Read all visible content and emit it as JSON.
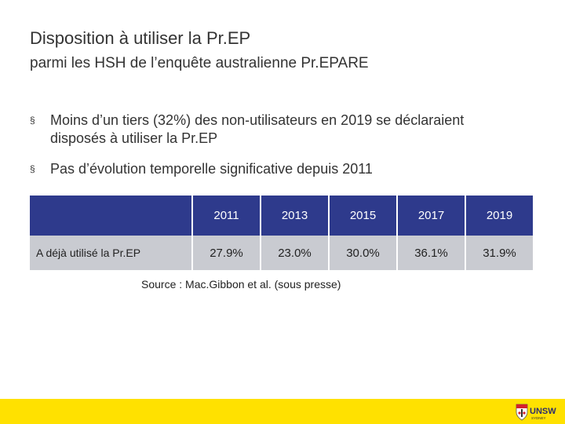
{
  "slide": {
    "title": "Disposition à utiliser la Pr.EP",
    "subtitle": "parmi les HSH de l’enquête australienne Pr.EPARE",
    "bullets": [
      "Moins d’un tiers (32%) des non-utilisateurs en 2019 se déclaraient disposés à utiliser la Pr.EP",
      "Pas d’évolution temporelle significative depuis 2011"
    ],
    "bullet_marker": "§"
  },
  "table": {
    "header_corner": "",
    "years": [
      "2011",
      "2013",
      "2015",
      "2017",
      "2019"
    ],
    "row_label": "A déjà utilisé la Pr.EP",
    "values": [
      "27.9%",
      "23.0%",
      "30.0%",
      "36.1%",
      "31.9%"
    ]
  },
  "source": "Source : Mac.Gibbon et al. (sous presse)",
  "logo": {
    "icon": "unsw-crest-icon",
    "text": "UNSW",
    "subtext": "SYDNEY"
  },
  "colors": {
    "header_fill": "#2e3a8c",
    "row_fill": "#c9cbd1",
    "footer_yellow": "#ffe100",
    "logo_red": "#d6202c",
    "logo_navy": "#2b2d6e"
  }
}
